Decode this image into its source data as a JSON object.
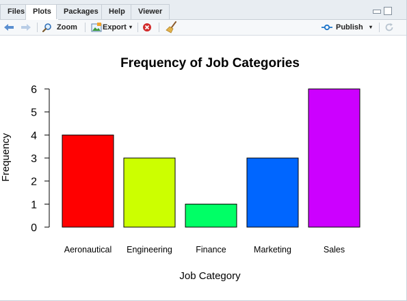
{
  "tabs": [
    {
      "label": "Files"
    },
    {
      "label": "Plots"
    },
    {
      "label": "Packages"
    },
    {
      "label": "Help"
    },
    {
      "label": "Viewer"
    }
  ],
  "toolbar": {
    "zoom_label": "Zoom",
    "export_label": "Export",
    "publish_label": "Publish"
  },
  "colors": {
    "accent": "#1a73c9"
  },
  "chart_data": {
    "type": "bar",
    "title": "Frequency of Job Categories",
    "xlabel": "Job Category",
    "ylabel": "Frequency",
    "categories": [
      "Aeronautical",
      "Engineering",
      "Finance",
      "Marketing",
      "Sales"
    ],
    "values": [
      4,
      3,
      1,
      3,
      6
    ],
    "colors": [
      "#ff0000",
      "#ccff00",
      "#00ff66",
      "#0066ff",
      "#cc00ff"
    ],
    "ylim": [
      0,
      6
    ],
    "yticks": [
      "0",
      "1",
      "2",
      "3",
      "4",
      "5",
      "6"
    ]
  }
}
